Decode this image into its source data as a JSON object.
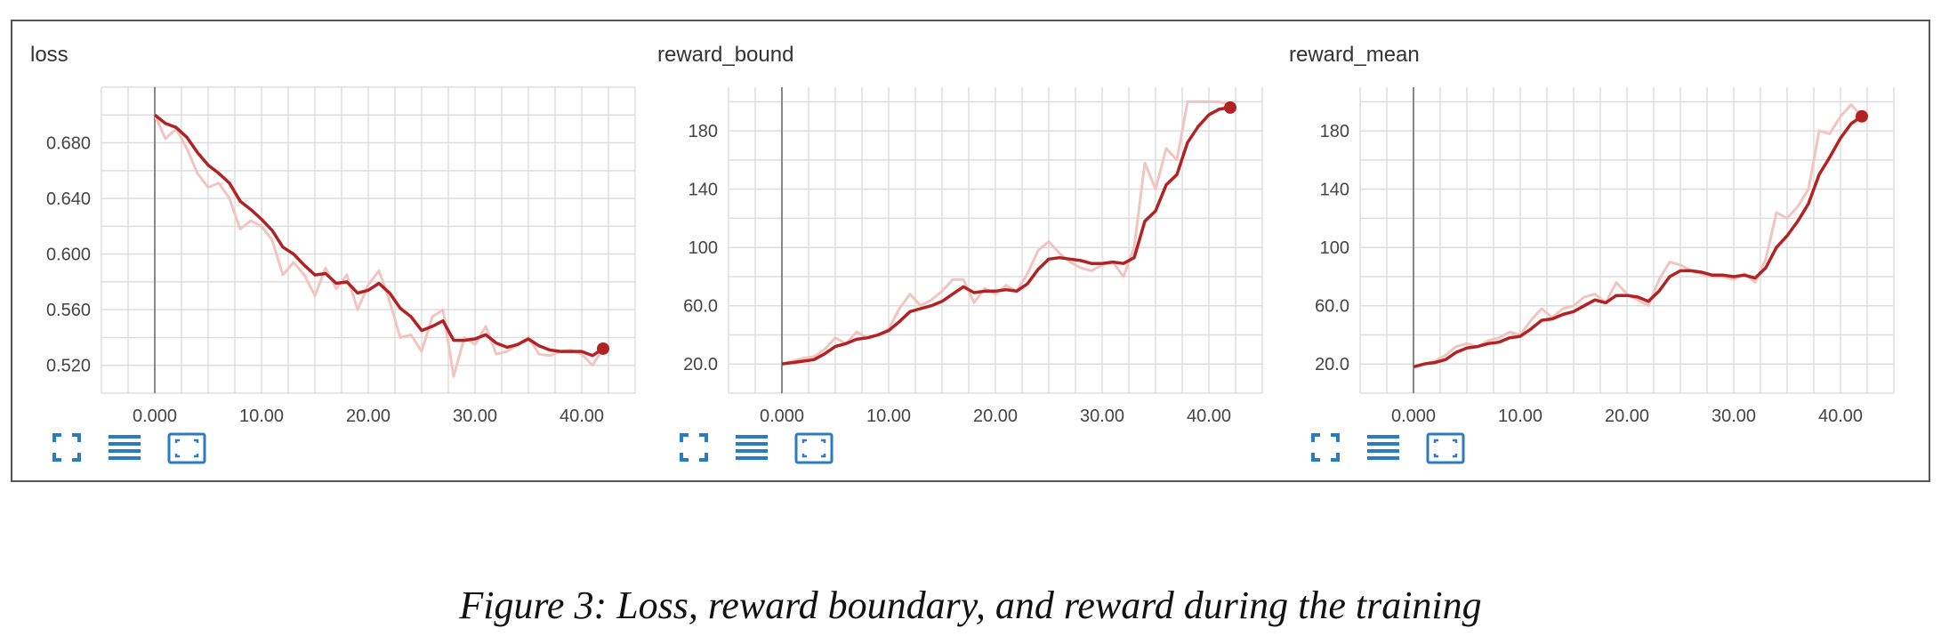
{
  "caption": "Figure 3: Loss, reward boundary, and reward during the training",
  "colors": {
    "smoothed_line": "#b22222",
    "raw_line": "#f2c4c0",
    "grid": "#dddddd",
    "axis": "#888888",
    "toolbar_icon": "#2b7bc0"
  },
  "icons": [
    "fullscreen-icon",
    "list-icon",
    "fit-domain-icon"
  ],
  "chart_data": [
    {
      "type": "line",
      "title": "loss",
      "xlim": [
        -5,
        45
      ],
      "ylim": [
        0.5,
        0.72
      ],
      "x_ticks": [
        0,
        10,
        20,
        30,
        40
      ],
      "x_tick_labels": [
        "0.000",
        "10.00",
        "20.00",
        "30.00",
        "40.00"
      ],
      "y_ticks": [
        0.52,
        0.56,
        0.6,
        0.64,
        0.68
      ],
      "y_tick_labels": [
        "0.520",
        "0.560",
        "0.600",
        "0.640",
        "0.680"
      ],
      "grid": true,
      "series": [
        {
          "style": "raw",
          "x": [
            0,
            1,
            2,
            3,
            4,
            5,
            6,
            7,
            8,
            9,
            10,
            11,
            12,
            13,
            14,
            15,
            16,
            17,
            18,
            19,
            20,
            21,
            22,
            23,
            24,
            25,
            26,
            27,
            28,
            29,
            30,
            31,
            32,
            33,
            34,
            35,
            36,
            37,
            38,
            39,
            40,
            41,
            42
          ],
          "y": [
            0.7,
            0.683,
            0.69,
            0.676,
            0.658,
            0.648,
            0.651,
            0.64,
            0.618,
            0.624,
            0.62,
            0.61,
            0.585,
            0.594,
            0.585,
            0.57,
            0.59,
            0.575,
            0.585,
            0.56,
            0.578,
            0.588,
            0.566,
            0.54,
            0.542,
            0.53,
            0.555,
            0.56,
            0.512,
            0.54,
            0.535,
            0.548,
            0.528,
            0.53,
            0.535,
            0.54,
            0.528,
            0.527,
            0.53,
            0.531,
            0.528,
            0.52,
            0.532
          ]
        },
        {
          "style": "smoothed",
          "x": [
            0,
            1,
            2,
            3,
            4,
            5,
            6,
            7,
            8,
            9,
            10,
            11,
            12,
            13,
            14,
            15,
            16,
            17,
            18,
            19,
            20,
            21,
            22,
            23,
            24,
            25,
            26,
            27,
            28,
            29,
            30,
            31,
            32,
            33,
            34,
            35,
            36,
            37,
            38,
            39,
            40,
            41,
            42
          ],
          "y": [
            0.7,
            0.694,
            0.691,
            0.684,
            0.673,
            0.664,
            0.658,
            0.651,
            0.638,
            0.632,
            0.625,
            0.617,
            0.605,
            0.6,
            0.592,
            0.585,
            0.586,
            0.579,
            0.58,
            0.572,
            0.574,
            0.579,
            0.572,
            0.561,
            0.555,
            0.545,
            0.548,
            0.552,
            0.538,
            0.538,
            0.539,
            0.542,
            0.536,
            0.533,
            0.535,
            0.539,
            0.534,
            0.531,
            0.53,
            0.53,
            0.53,
            0.527,
            0.532
          ]
        }
      ]
    },
    {
      "type": "line",
      "title": "reward_bound",
      "xlim": [
        -5,
        45
      ],
      "ylim": [
        0,
        210
      ],
      "x_ticks": [
        0,
        10,
        20,
        30,
        40
      ],
      "x_tick_labels": [
        "0.000",
        "10.00",
        "20.00",
        "30.00",
        "40.00"
      ],
      "y_ticks": [
        20,
        60,
        100,
        140,
        180
      ],
      "y_tick_labels": [
        "20.0",
        "60.0",
        "100",
        "140",
        "180"
      ],
      "grid": true,
      "series": [
        {
          "style": "raw",
          "x": [
            0,
            1,
            2,
            3,
            4,
            5,
            6,
            7,
            8,
            9,
            10,
            11,
            12,
            13,
            14,
            15,
            16,
            17,
            18,
            19,
            20,
            21,
            22,
            23,
            24,
            25,
            26,
            27,
            28,
            29,
            30,
            31,
            32,
            33,
            34,
            35,
            36,
            37,
            38,
            39,
            40,
            41,
            42
          ],
          "y": [
            20,
            22,
            24,
            25,
            30,
            38,
            34,
            42,
            38,
            40,
            44,
            58,
            68,
            60,
            64,
            70,
            78,
            78,
            62,
            72,
            68,
            74,
            70,
            82,
            98,
            104,
            96,
            90,
            86,
            84,
            88,
            90,
            80,
            100,
            158,
            140,
            168,
            160,
            200,
            200,
            200,
            200,
            198
          ]
        },
        {
          "style": "smoothed",
          "x": [
            0,
            1,
            2,
            3,
            4,
            5,
            6,
            7,
            8,
            9,
            10,
            11,
            12,
            13,
            14,
            15,
            16,
            17,
            18,
            19,
            20,
            21,
            22,
            23,
            24,
            25,
            26,
            27,
            28,
            29,
            30,
            31,
            32,
            33,
            34,
            35,
            36,
            37,
            38,
            39,
            40,
            41,
            42
          ],
          "y": [
            20,
            21,
            22,
            23,
            27,
            32,
            34,
            37,
            38,
            40,
            43,
            49,
            56,
            58,
            60,
            63,
            68,
            73,
            69,
            70,
            70,
            71,
            70,
            75,
            85,
            92,
            93,
            92,
            91,
            89,
            89,
            90,
            89,
            93,
            118,
            125,
            143,
            150,
            172,
            183,
            191,
            195,
            196
          ]
        }
      ]
    },
    {
      "type": "line",
      "title": "reward_mean",
      "xlim": [
        -5,
        45
      ],
      "ylim": [
        0,
        210
      ],
      "x_ticks": [
        0,
        10,
        20,
        30,
        40
      ],
      "x_tick_labels": [
        "0.000",
        "10.00",
        "20.00",
        "30.00",
        "40.00"
      ],
      "y_ticks": [
        20,
        60,
        100,
        140,
        180
      ],
      "y_tick_labels": [
        "20.0",
        "60.0",
        "100",
        "140",
        "180"
      ],
      "grid": true,
      "series": [
        {
          "style": "raw",
          "x": [
            0,
            1,
            2,
            3,
            4,
            5,
            6,
            7,
            8,
            9,
            10,
            11,
            12,
            13,
            14,
            15,
            16,
            17,
            18,
            19,
            20,
            21,
            22,
            23,
            24,
            25,
            26,
            27,
            28,
            29,
            30,
            31,
            32,
            33,
            34,
            35,
            36,
            37,
            38,
            39,
            40,
            41,
            42
          ],
          "y": [
            18,
            20,
            22,
            26,
            32,
            34,
            32,
            36,
            38,
            42,
            40,
            50,
            58,
            52,
            58,
            60,
            66,
            68,
            62,
            76,
            68,
            64,
            60,
            78,
            90,
            88,
            84,
            82,
            80,
            80,
            78,
            82,
            76,
            92,
            124,
            120,
            128,
            140,
            180,
            178,
            190,
            198,
            190
          ]
        },
        {
          "style": "smoothed",
          "x": [
            0,
            1,
            2,
            3,
            4,
            5,
            6,
            7,
            8,
            9,
            10,
            11,
            12,
            13,
            14,
            15,
            16,
            17,
            18,
            19,
            20,
            21,
            22,
            23,
            24,
            25,
            26,
            27,
            28,
            29,
            30,
            31,
            32,
            33,
            34,
            35,
            36,
            37,
            38,
            39,
            40,
            41,
            42
          ],
          "y": [
            18,
            20,
            21,
            23,
            28,
            31,
            32,
            34,
            35,
            38,
            39,
            44,
            50,
            51,
            54,
            56,
            60,
            64,
            62,
            67,
            67,
            66,
            63,
            70,
            80,
            84,
            84,
            83,
            81,
            81,
            80,
            81,
            79,
            86,
            100,
            108,
            118,
            130,
            150,
            162,
            175,
            185,
            190
          ]
        }
      ]
    }
  ]
}
